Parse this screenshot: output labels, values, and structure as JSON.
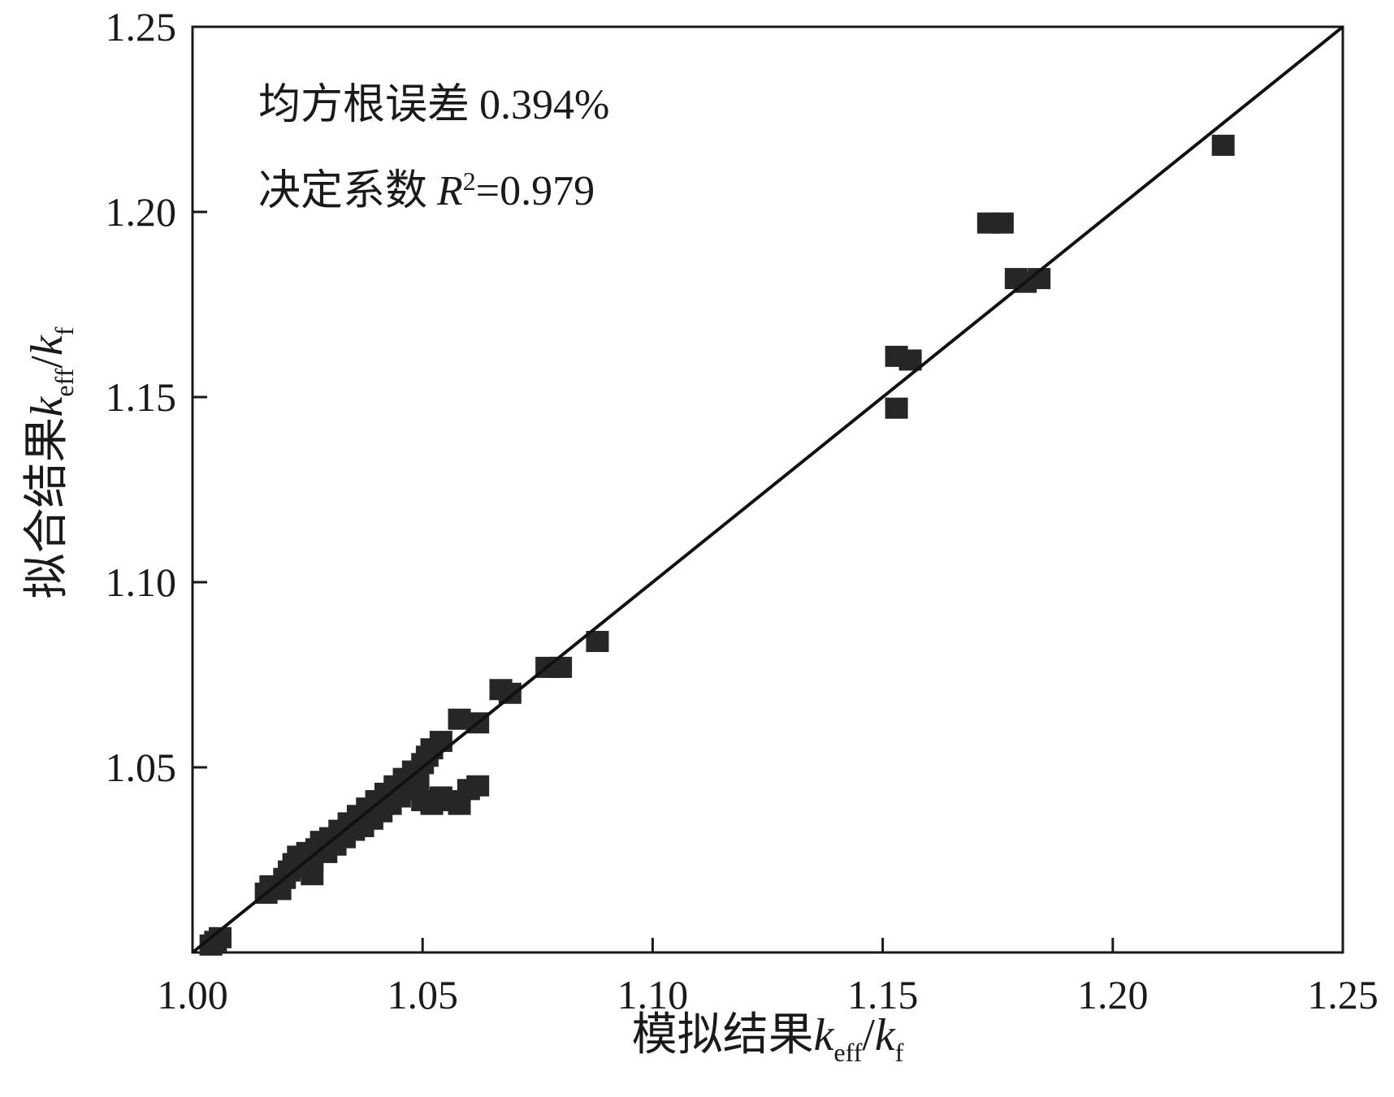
{
  "chart_data": {
    "type": "scatter",
    "title": "",
    "xlabel": {
      "main": "模拟结果",
      "k1": "k",
      "sub1": "eff",
      "slash": "/",
      "k2": "k",
      "sub2": "f"
    },
    "ylabel": {
      "main": "拟合结果",
      "k1": "k",
      "sub1": "eff",
      "slash": "/",
      "k2": "k",
      "sub2": "f"
    },
    "xlim": [
      1.0,
      1.25
    ],
    "ylim": [
      1.0,
      1.25
    ],
    "xticks": [
      "1.00",
      "1.05",
      "1.10",
      "1.15",
      "1.20",
      "1.25"
    ],
    "yticks": [
      "1.05",
      "1.10",
      "1.15",
      "1.20",
      "1.25"
    ],
    "annotations": {
      "rmse_label": "均方根误差",
      "rmse_value": "0.394%",
      "r2_label": "决定系数",
      "r2_symbol": "R",
      "r2_exp": "2",
      "r2_value": "=0.979"
    },
    "fit_line": {
      "x": [
        1.0,
        1.25
      ],
      "y": [
        1.0,
        1.25
      ]
    },
    "series": [
      {
        "name": "data",
        "color": "#262626",
        "points": [
          [
            1.004,
            1.002
          ],
          [
            1.005,
            1.003
          ],
          [
            1.006,
            1.004
          ],
          [
            1.016,
            1.016
          ],
          [
            1.017,
            1.018
          ],
          [
            1.019,
            1.017
          ],
          [
            1.02,
            1.02
          ],
          [
            1.021,
            1.022
          ],
          [
            1.022,
            1.024
          ],
          [
            1.023,
            1.026
          ],
          [
            1.024,
            1.023
          ],
          [
            1.025,
            1.027
          ],
          [
            1.026,
            1.025
          ],
          [
            1.026,
            1.021
          ],
          [
            1.027,
            1.028
          ],
          [
            1.028,
            1.03
          ],
          [
            1.029,
            1.027
          ],
          [
            1.03,
            1.031
          ],
          [
            1.031,
            1.029
          ],
          [
            1.032,
            1.033
          ],
          [
            1.033,
            1.031
          ],
          [
            1.034,
            1.035
          ],
          [
            1.035,
            1.033
          ],
          [
            1.036,
            1.037
          ],
          [
            1.037,
            1.034
          ],
          [
            1.038,
            1.039
          ],
          [
            1.039,
            1.036
          ],
          [
            1.04,
            1.041
          ],
          [
            1.041,
            1.038
          ],
          [
            1.042,
            1.043
          ],
          [
            1.043,
            1.04
          ],
          [
            1.044,
            1.045
          ],
          [
            1.045,
            1.042
          ],
          [
            1.046,
            1.047
          ],
          [
            1.047,
            1.044
          ],
          [
            1.048,
            1.049
          ],
          [
            1.049,
            1.046
          ],
          [
            1.05,
            1.051
          ],
          [
            1.051,
            1.053
          ],
          [
            1.052,
            1.055
          ],
          [
            1.054,
            1.057
          ],
          [
            1.05,
            1.041
          ],
          [
            1.052,
            1.04
          ],
          [
            1.054,
            1.042
          ],
          [
            1.056,
            1.041
          ],
          [
            1.058,
            1.04
          ],
          [
            1.06,
            1.044
          ],
          [
            1.062,
            1.045
          ],
          [
            1.058,
            1.063
          ],
          [
            1.062,
            1.062
          ],
          [
            1.067,
            1.071
          ],
          [
            1.069,
            1.07
          ],
          [
            1.077,
            1.077
          ],
          [
            1.08,
            1.077
          ],
          [
            1.088,
            1.084
          ],
          [
            1.153,
            1.161
          ],
          [
            1.156,
            1.16
          ],
          [
            1.153,
            1.147
          ],
          [
            1.173,
            1.197
          ],
          [
            1.176,
            1.197
          ],
          [
            1.179,
            1.182
          ],
          [
            1.181,
            1.181
          ],
          [
            1.184,
            1.182
          ],
          [
            1.224,
            1.218
          ]
        ]
      }
    ]
  }
}
